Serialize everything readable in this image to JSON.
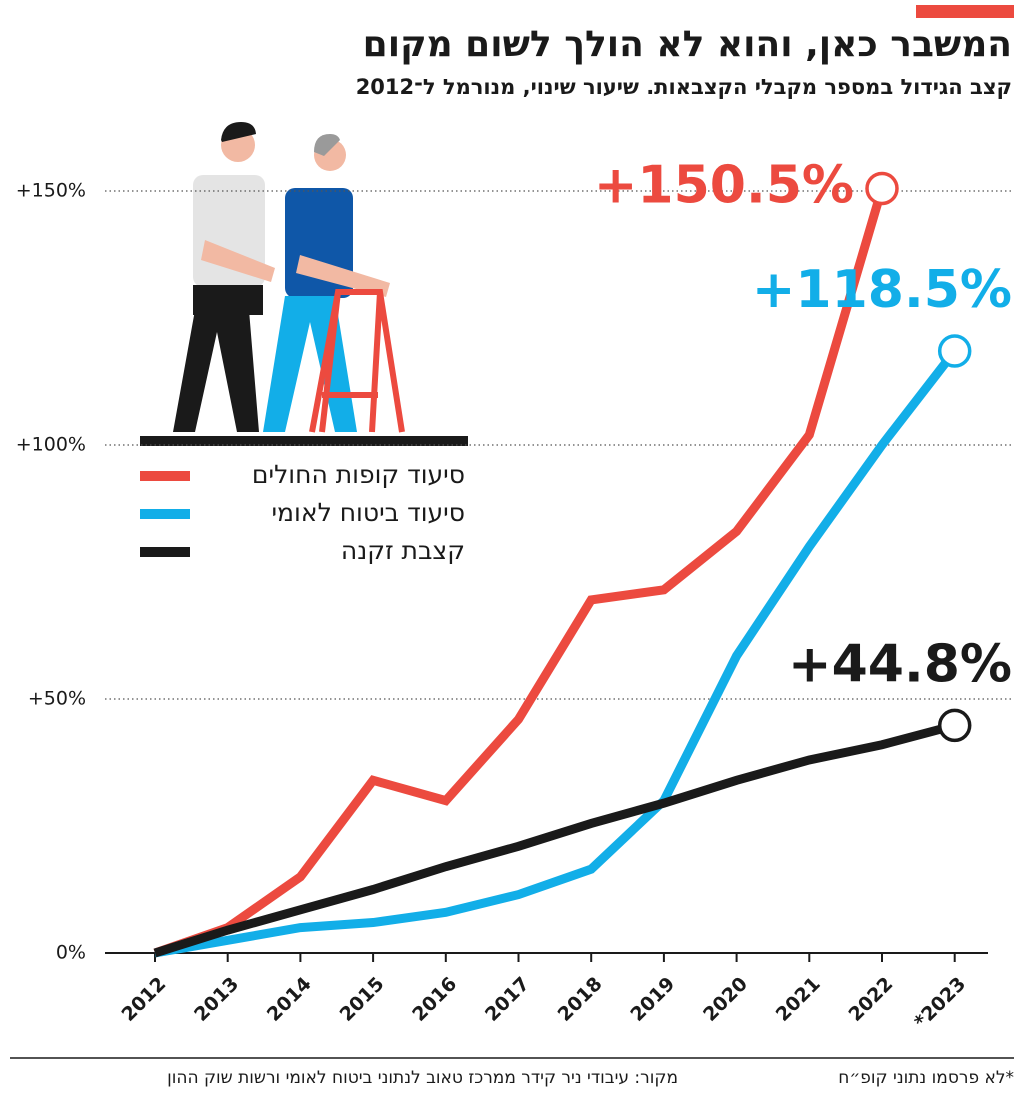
{
  "chart_data": {
    "type": "line",
    "title": "המשבר כאן, והוא לא הולך לשום מקום",
    "subtitle": "קצב הגידול במספר מקבלי הקצבאות. שיעור שינוי, מנורמל ל־2012",
    "categories": [
      "2012",
      "2013",
      "2014",
      "2015",
      "2016",
      "2017",
      "2018",
      "2019",
      "2020",
      "2021",
      "2022",
      "*2023"
    ],
    "series": [
      {
        "name": "סיעוד קופות החולים",
        "color": "#ec4a3f",
        "values": [
          0,
          5,
          15,
          34,
          30,
          46,
          69.5,
          71.5,
          83,
          102,
          150.5,
          null
        ],
        "value_labels": [
          null,
          null,
          null,
          null,
          null,
          null,
          null,
          null,
          null,
          null,
          "+150.5%",
          null
        ]
      },
      {
        "name": "סיעוד ביטוח לאומי",
        "color": "#12aee8",
        "values": [
          0,
          2.5,
          5,
          6,
          8,
          11.5,
          16.5,
          30,
          58.5,
          80,
          100,
          118.5
        ],
        "value_labels": [
          null,
          null,
          null,
          null,
          null,
          null,
          null,
          null,
          null,
          null,
          null,
          "+118.5%"
        ]
      },
      {
        "name": "קצבת זקנה",
        "color": "#1a1a1a",
        "values": [
          0,
          4.5,
          8.5,
          12.5,
          17,
          21,
          25.5,
          29.5,
          34,
          38,
          41,
          44.8
        ],
        "value_labels": [
          null,
          null,
          null,
          null,
          null,
          null,
          null,
          null,
          null,
          null,
          null,
          "+44.8%"
        ]
      }
    ],
    "ylim": [
      0,
      150
    ],
    "yticks": [
      {
        "value": 0,
        "label": "0%"
      },
      {
        "value": 50,
        "label": "+50%"
      },
      {
        "value": 100,
        "label": "+100%"
      },
      {
        "value": 150,
        "label": "+150%"
      }
    ],
    "grid": true,
    "source": "מקור: עיבודי ניר קידר ממרכז טאוב לנתוני ביטוח לאומי ורשות שוק ההון",
    "footnote": "*לא פרסמו נתוני קופ״ח"
  }
}
